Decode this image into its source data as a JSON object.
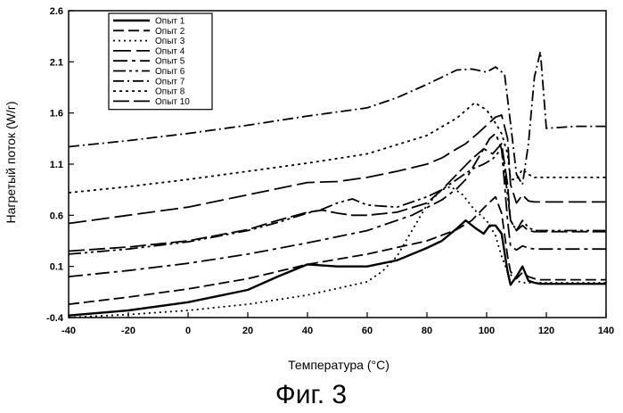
{
  "caption": "Фиг. 3",
  "chart_data": {
    "type": "line",
    "xlabel": "Температура (°C)",
    "ylabel": "Нагретый поток (W/г)",
    "xlim": [
      -40,
      140
    ],
    "ylim": [
      -0.4,
      2.6
    ],
    "xticks": [
      -40,
      -20,
      0,
      20,
      40,
      60,
      80,
      100,
      120,
      140
    ],
    "yticks": [
      -0.4,
      0.1,
      0.6,
      1.1,
      1.6,
      2.1,
      2.6
    ],
    "ytick_labels": [
      "-0.4",
      "0.1",
      "0.6",
      "1.1",
      "1.6",
      "2.1",
      "2.6"
    ],
    "legend_position": "top-left",
    "grid": false,
    "series": [
      {
        "name": "Опыт 1",
        "dash": "solid",
        "x": [
          -40,
          -20,
          0,
          20,
          30,
          40,
          50,
          60,
          70,
          80,
          85,
          90,
          93,
          96,
          99,
          101,
          103,
          105,
          107,
          108,
          110,
          112,
          114,
          116,
          118,
          120,
          130,
          140
        ],
        "y": [
          -0.38,
          -0.33,
          -0.25,
          -0.13,
          0.0,
          0.12,
          0.1,
          0.1,
          0.16,
          0.28,
          0.35,
          0.47,
          0.55,
          0.48,
          0.42,
          0.5,
          0.5,
          0.42,
          0.05,
          -0.08,
          0.0,
          0.1,
          -0.04,
          -0.06,
          -0.07,
          -0.07,
          -0.07,
          -0.07
        ]
      },
      {
        "name": "Опыт 2",
        "dash": "12 5",
        "x": [
          -40,
          -20,
          0,
          20,
          40,
          60,
          80,
          90,
          95,
          100,
          103,
          105,
          107,
          108,
          110,
          112,
          114,
          116,
          118,
          120,
          130,
          140
        ],
        "y": [
          -0.27,
          -0.2,
          -0.12,
          -0.02,
          0.12,
          0.22,
          0.35,
          0.46,
          0.55,
          0.7,
          0.78,
          0.62,
          0.2,
          0.05,
          -0.02,
          0.04,
          0.0,
          -0.02,
          -0.03,
          -0.03,
          -0.03,
          -0.03
        ]
      },
      {
        "name": "Опыт 3",
        "dash": "2 4",
        "x": [
          -40,
          -20,
          0,
          20,
          40,
          60,
          65,
          70,
          75,
          80,
          85,
          88,
          92,
          96,
          100,
          103,
          105,
          107,
          110,
          112,
          114,
          116,
          118,
          120,
          130,
          140
        ],
        "y": [
          -0.4,
          -0.37,
          -0.33,
          -0.27,
          -0.18,
          -0.05,
          0.05,
          0.2,
          0.45,
          0.7,
          0.85,
          0.88,
          0.8,
          0.65,
          0.55,
          0.4,
          0.2,
          0.05,
          -0.04,
          -0.06,
          -0.06,
          -0.06,
          -0.06,
          -0.06,
          -0.06,
          -0.06
        ]
      },
      {
        "name": "Опыт 4",
        "dash": "20 6",
        "x": [
          -40,
          -20,
          0,
          20,
          40,
          50,
          60,
          70,
          80,
          85,
          90,
          93,
          97,
          100,
          103,
          105,
          107,
          108,
          110,
          112,
          114,
          116,
          118,
          120,
          130,
          140
        ],
        "y": [
          0.52,
          0.6,
          0.68,
          0.8,
          0.92,
          0.93,
          0.97,
          1.03,
          1.1,
          1.16,
          1.25,
          1.3,
          1.4,
          1.48,
          1.56,
          1.58,
          1.35,
          0.9,
          0.72,
          0.8,
          0.74,
          0.73,
          0.73,
          0.73,
          0.73,
          0.73
        ]
      },
      {
        "name": "Опыт 5",
        "dash": "16 5 4 5",
        "x": [
          -40,
          -20,
          0,
          20,
          40,
          60,
          75,
          85,
          90,
          93,
          96,
          99,
          101,
          103,
          105,
          107,
          108,
          110,
          112,
          114,
          116,
          118,
          120,
          130,
          140
        ],
        "y": [
          0.0,
          0.06,
          0.13,
          0.22,
          0.33,
          0.45,
          0.6,
          0.75,
          0.86,
          0.95,
          1.1,
          1.25,
          1.35,
          1.4,
          1.25,
          0.55,
          0.3,
          0.26,
          0.3,
          0.28,
          0.27,
          0.27,
          0.27,
          0.27,
          0.27
        ]
      },
      {
        "name": "Опыт 6",
        "dash": "14 4 3 4 3 4",
        "x": [
          -40,
          -20,
          0,
          20,
          30,
          40,
          45,
          50,
          55,
          60,
          70,
          80,
          85,
          90,
          95,
          99,
          102,
          105,
          107,
          108,
          110,
          112,
          114,
          116,
          118,
          120,
          130,
          140
        ],
        "y": [
          0.22,
          0.27,
          0.34,
          0.45,
          0.53,
          0.62,
          0.66,
          0.72,
          0.76,
          0.7,
          0.68,
          0.78,
          0.85,
          0.95,
          1.05,
          1.1,
          1.15,
          1.25,
          0.8,
          0.55,
          0.45,
          0.55,
          0.48,
          0.45,
          0.45,
          0.45,
          0.45,
          0.45
        ]
      },
      {
        "name": "Опыт 7",
        "dash": "12 4 2 4",
        "x": [
          -40,
          -20,
          0,
          20,
          40,
          60,
          70,
          80,
          90,
          95,
          100,
          103,
          106,
          108,
          110,
          112,
          114,
          116,
          118,
          120,
          130,
          140
        ],
        "y": [
          1.27,
          1.33,
          1.4,
          1.48,
          1.57,
          1.65,
          1.75,
          1.88,
          2.02,
          2.03,
          2.0,
          2.05,
          1.98,
          1.5,
          1.0,
          0.9,
          1.3,
          1.95,
          2.2,
          1.45,
          1.47,
          1.47
        ]
      },
      {
        "name": "Опыт 8",
        "dash": "3 4",
        "x": [
          -40,
          -20,
          0,
          20,
          40,
          60,
          80,
          90,
          96,
          100,
          103,
          105,
          107,
          108,
          110,
          112,
          114,
          116,
          118,
          120,
          130,
          140
        ],
        "y": [
          0.82,
          0.88,
          0.95,
          1.03,
          1.11,
          1.2,
          1.38,
          1.55,
          1.7,
          1.63,
          1.5,
          1.4,
          1.2,
          0.95,
          0.95,
          1.05,
          1.0,
          0.97,
          0.97,
          0.97,
          0.97,
          0.97
        ]
      },
      {
        "name": "Опыт 10",
        "dash": "18 5",
        "x": [
          -40,
          -20,
          0,
          20,
          30,
          40,
          45,
          50,
          55,
          60,
          70,
          80,
          85,
          90,
          95,
          99,
          102,
          105,
          107,
          108,
          110,
          112,
          114,
          116,
          118,
          120,
          130,
          140
        ],
        "y": [
          0.25,
          0.29,
          0.35,
          0.46,
          0.55,
          0.63,
          0.65,
          0.62,
          0.6,
          0.6,
          0.63,
          0.72,
          0.85,
          1.0,
          1.15,
          1.25,
          1.2,
          1.3,
          0.9,
          0.55,
          0.45,
          0.5,
          0.45,
          0.44,
          0.44,
          0.44,
          0.44,
          0.44
        ]
      }
    ]
  }
}
